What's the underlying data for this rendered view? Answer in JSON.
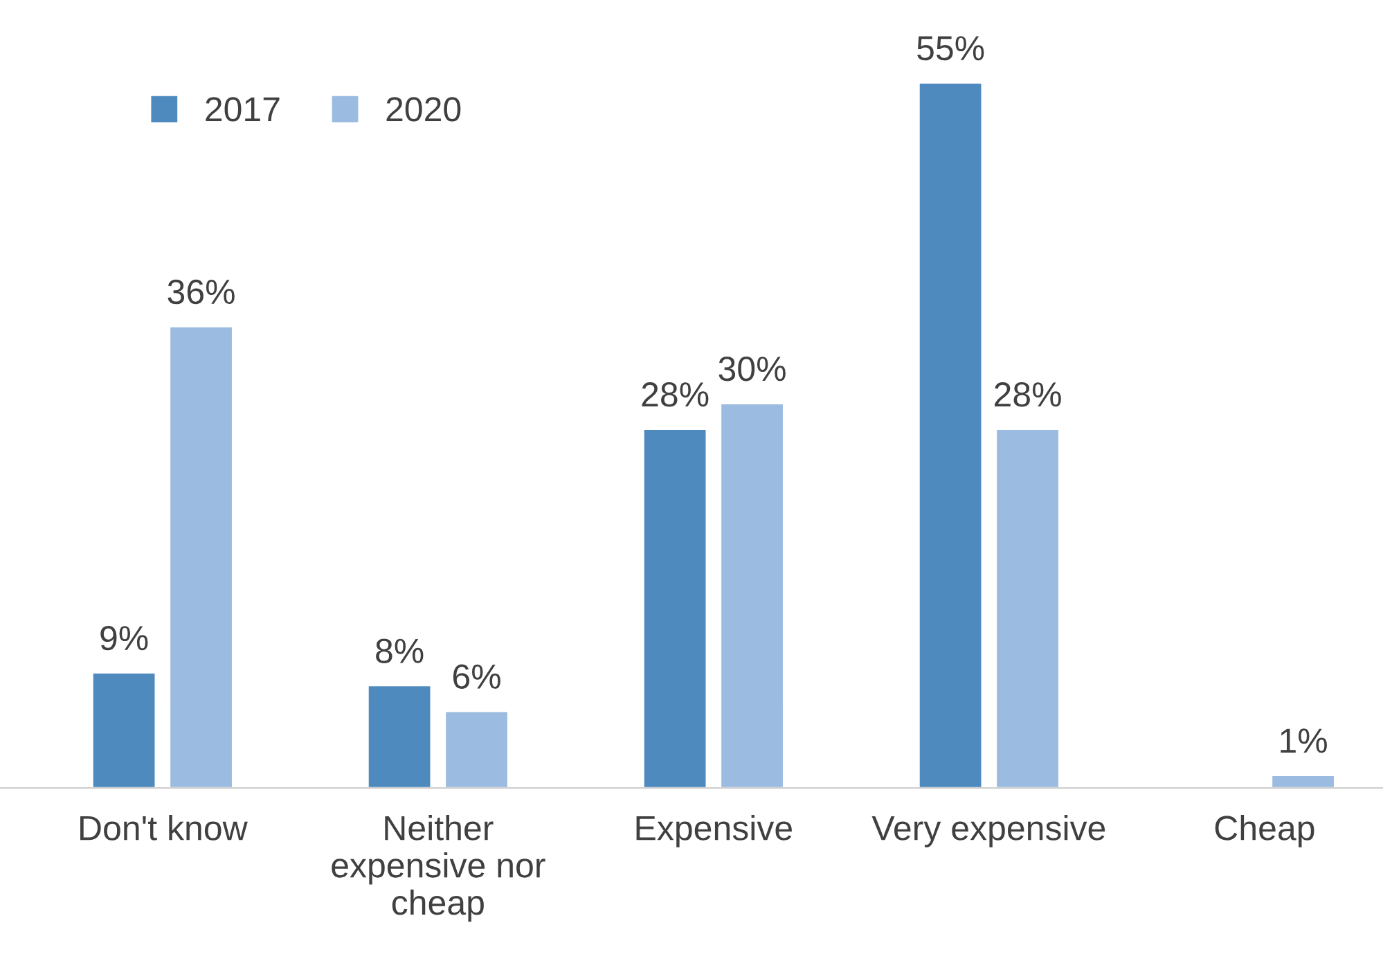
{
  "chart_data": {
    "type": "bar",
    "categories": [
      "Don't know",
      "Neither expensive nor cheap",
      "Expensive",
      "Very expensive",
      "Cheap"
    ],
    "series": [
      {
        "name": "2017",
        "color": "#4f8abf",
        "values": [
          9,
          8,
          28,
          55,
          null
        ],
        "value_labels": [
          "9%",
          "8%",
          "28%",
          "55%",
          null
        ]
      },
      {
        "name": "2020",
        "color": "#9bbbe0",
        "values": [
          36,
          6,
          30,
          28,
          1
        ],
        "value_labels": [
          "36%",
          "6%",
          "30%",
          "28%",
          "1%"
        ]
      }
    ],
    "legend": "top left",
    "grid": false
  }
}
